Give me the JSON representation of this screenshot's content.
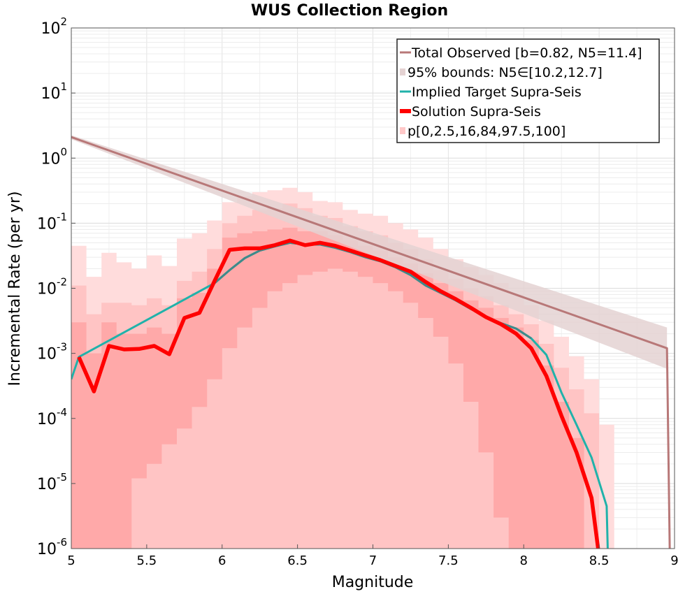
{
  "chart_data": {
    "type": "line",
    "title": "WUS Collection Region",
    "xlabel": "Magnitude",
    "ylabel": "Incremental Rate (per yr)",
    "x_scale": "linear",
    "y_scale": "log",
    "xlim": [
      5,
      9
    ],
    "ylim": [
      1e-06,
      100
    ],
    "grid": true,
    "legend_position": "top-right",
    "x_ticks": [
      "5",
      "5.5",
      "6",
      "6.5",
      "7",
      "7.5",
      "8",
      "8.5",
      "9"
    ],
    "x_tick_values": [
      5,
      5.5,
      6,
      6.5,
      7,
      7.5,
      8,
      8.5,
      9
    ],
    "y_ticks": [
      {
        "base": "10",
        "exp": "-6",
        "value": 1e-06
      },
      {
        "base": "10",
        "exp": "-5",
        "value": 1e-05
      },
      {
        "base": "10",
        "exp": "-4",
        "value": 0.0001
      },
      {
        "base": "10",
        "exp": "-3",
        "value": 0.001
      },
      {
        "base": "10",
        "exp": "-2",
        "value": 0.01
      },
      {
        "base": "10",
        "exp": "-1",
        "value": 0.1
      },
      {
        "base": "10",
        "exp": "0",
        "value": 1
      },
      {
        "base": "10",
        "exp": "1",
        "value": 10
      },
      {
        "base": "10",
        "exp": "2",
        "value": 100
      }
    ],
    "legend": [
      {
        "label": "Total Observed [b=0.82, N5=11.4]",
        "color": "#b87878",
        "kind": "line"
      },
      {
        "label": "95% bounds: N5∈[10.2,12.7]",
        "color": "#e4d2d2",
        "kind": "band"
      },
      {
        "label": "Implied Target Supra-Seis",
        "color": "#20b2aa",
        "kind": "line"
      },
      {
        "label": "Solution Supra-Seis",
        "color": "#ff0000",
        "kind": "thick-line"
      },
      {
        "label": "p[0,2.5,16,84,97.5,100]",
        "color": "#ffc8c8",
        "kind": "band"
      }
    ],
    "colors": {
      "total_observed": "#b87878",
      "total_band": "#e4d2d2",
      "implied_target": "#20b2aa",
      "implied_target_mid": "#3e8a8a",
      "solution": "#ff0000",
      "band_outer": "#ffdcdc",
      "band_middle": "#ffc4c4",
      "band_inner": "#ffa9a9"
    },
    "series": [
      {
        "key": "total_observed",
        "x": [
          5.0,
          8.95,
          8.97
        ],
        "y": [
          2.1,
          0.0012,
          5e-07
        ]
      },
      {
        "key": "total_band",
        "x": [
          5.0,
          8.95
        ],
        "y_low": [
          1.95,
          0.00058
        ],
        "y_high": [
          2.25,
          0.0025
        ]
      },
      {
        "key": "implied_target",
        "x": [
          5.0,
          5.05,
          5.95,
          6.05,
          6.15,
          6.25,
          6.35,
          6.45,
          6.55,
          6.65,
          6.75,
          6.85,
          6.95,
          7.05,
          7.15,
          7.25,
          7.35,
          7.45,
          7.55,
          7.65,
          7.75,
          7.85,
          7.95,
          8.05,
          8.15,
          8.25,
          8.35,
          8.45,
          8.55,
          8.56
        ],
        "y": [
          0.0004,
          0.00088,
          0.012,
          0.019,
          0.029,
          0.038,
          0.044,
          0.05,
          0.047,
          0.047,
          0.042,
          0.036,
          0.03,
          0.026,
          0.021,
          0.016,
          0.011,
          0.0085,
          0.0065,
          0.0048,
          0.0037,
          0.0029,
          0.0024,
          0.0017,
          0.00095,
          0.00025,
          8e-05,
          2.5e-05,
          4.5e-06,
          5e-07
        ]
      },
      {
        "key": "solution",
        "x": [
          5.05,
          5.15,
          5.25,
          5.35,
          5.45,
          5.55,
          5.65,
          5.75,
          5.85,
          5.95,
          6.05,
          6.15,
          6.25,
          6.35,
          6.45,
          6.55,
          6.65,
          6.75,
          6.85,
          6.95,
          7.05,
          7.15,
          7.25,
          7.35,
          7.45,
          7.55,
          7.65,
          7.75,
          7.85,
          7.95,
          8.05,
          8.15,
          8.25,
          8.35,
          8.45,
          8.51
        ],
        "y": [
          0.00088,
          0.00026,
          0.0013,
          0.00115,
          0.00117,
          0.0013,
          0.00097,
          0.0035,
          0.0042,
          0.013,
          0.039,
          0.041,
          0.041,
          0.046,
          0.054,
          0.046,
          0.05,
          0.045,
          0.038,
          0.032,
          0.027,
          0.022,
          0.018,
          0.0125,
          0.009,
          0.0068,
          0.005,
          0.0036,
          0.0028,
          0.002,
          0.0012,
          0.00045,
          0.00011,
          3e-05,
          6e-06,
          5e-07
        ]
      },
      {
        "key": "band_outer",
        "x": [
          5.05,
          5.15,
          5.25,
          5.35,
          5.45,
          5.55,
          5.65,
          5.75,
          5.85,
          5.95,
          6.05,
          6.15,
          6.25,
          6.35,
          6.45,
          6.55,
          6.65,
          6.75,
          6.85,
          6.95,
          7.05,
          7.15,
          7.25,
          7.35,
          7.45,
          7.55,
          7.65,
          7.75,
          7.85,
          7.95,
          8.05,
          8.15,
          8.25,
          8.35,
          8.45,
          8.55
        ],
        "y_low": [
          5e-07,
          5e-07,
          5e-07,
          5e-07,
          5e-07,
          5e-07,
          5e-07,
          5e-07,
          5e-07,
          5e-07,
          5e-07,
          5e-07,
          5e-07,
          5e-07,
          5e-07,
          5e-07,
          5e-07,
          5e-07,
          5e-07,
          5e-07,
          5e-07,
          5e-07,
          5e-07,
          5e-07,
          5e-07,
          5e-07,
          5e-07,
          5e-07,
          5e-07,
          5e-07,
          5e-07,
          5e-07,
          5e-07,
          5e-07,
          5e-07,
          5e-07
        ],
        "y_high": [
          0.045,
          0.015,
          0.035,
          0.025,
          0.02,
          0.032,
          0.022,
          0.058,
          0.07,
          0.11,
          0.21,
          0.26,
          0.3,
          0.32,
          0.35,
          0.3,
          0.22,
          0.21,
          0.16,
          0.14,
          0.13,
          0.1,
          0.08,
          0.06,
          0.04,
          0.028,
          0.021,
          0.016,
          0.012,
          0.008,
          0.0055,
          0.0032,
          0.0018,
          0.0009,
          0.0004,
          8e-05
        ]
      },
      {
        "key": "band_middle",
        "x": [
          5.05,
          5.15,
          5.25,
          5.35,
          5.45,
          5.55,
          5.65,
          5.75,
          5.85,
          5.95,
          6.05,
          6.15,
          6.25,
          6.35,
          6.45,
          6.55,
          6.65,
          6.75,
          6.85,
          6.95,
          7.05,
          7.15,
          7.25,
          7.35,
          7.45,
          7.55,
          7.65,
          7.75,
          7.85,
          7.95,
          8.05,
          8.15,
          8.25,
          8.35,
          8.45
        ],
        "y_low": [
          5e-07,
          5e-07,
          5e-07,
          5e-07,
          5e-07,
          5e-07,
          5e-07,
          5e-07,
          5e-07,
          5e-07,
          5e-07,
          5e-07,
          5e-07,
          5e-07,
          5e-07,
          5e-07,
          5e-07,
          5e-07,
          5e-07,
          5e-07,
          5e-07,
          5e-07,
          5e-07,
          5e-07,
          5e-07,
          5e-07,
          5e-07,
          5e-07,
          5e-07,
          5e-07,
          5e-07,
          5e-07,
          5e-07,
          5e-07,
          5e-07
        ],
        "y_high": [
          0.011,
          0.004,
          0.006,
          0.006,
          0.0055,
          0.007,
          0.0055,
          0.013,
          0.018,
          0.04,
          0.1,
          0.13,
          0.16,
          0.17,
          0.2,
          0.17,
          0.13,
          0.12,
          0.09,
          0.075,
          0.065,
          0.05,
          0.04,
          0.028,
          0.019,
          0.014,
          0.01,
          0.0075,
          0.0055,
          0.004,
          0.0028,
          0.0014,
          0.0006,
          0.00028,
          0.00012
        ]
      },
      {
        "key": "band_inner",
        "x": [
          5.05,
          5.15,
          5.25,
          5.35,
          5.45,
          5.55,
          5.65,
          5.75,
          5.85,
          5.95,
          6.05,
          6.15,
          6.25,
          6.35,
          6.45,
          6.55,
          6.65,
          6.75,
          6.85,
          6.95,
          7.05,
          7.15,
          7.25,
          7.35,
          7.45,
          7.55,
          7.65,
          7.75,
          7.85,
          7.95,
          8.05,
          8.15,
          8.25,
          8.35
        ],
        "y_low": [
          5e-07,
          5e-07,
          5e-07,
          5e-07,
          1.2e-05,
          2e-05,
          4e-05,
          7e-05,
          0.00015,
          0.0004,
          0.0012,
          0.0025,
          0.005,
          0.009,
          0.012,
          0.016,
          0.018,
          0.02,
          0.018,
          0.015,
          0.012,
          0.009,
          0.006,
          0.0035,
          0.0018,
          0.0007,
          0.00018,
          3e-05,
          3e-06,
          5e-07,
          5e-07,
          5e-07,
          5e-07,
          5e-07
        ],
        "y_high": [
          0.003,
          0.001,
          0.003,
          0.002,
          0.002,
          0.0025,
          0.002,
          0.007,
          0.0085,
          0.02,
          0.06,
          0.07,
          0.075,
          0.08,
          0.085,
          0.075,
          0.075,
          0.065,
          0.055,
          0.045,
          0.038,
          0.03,
          0.024,
          0.017,
          0.012,
          0.009,
          0.0065,
          0.005,
          0.0035,
          0.0025,
          0.0016,
          0.00065,
          0.00018,
          5e-05
        ]
      }
    ]
  }
}
